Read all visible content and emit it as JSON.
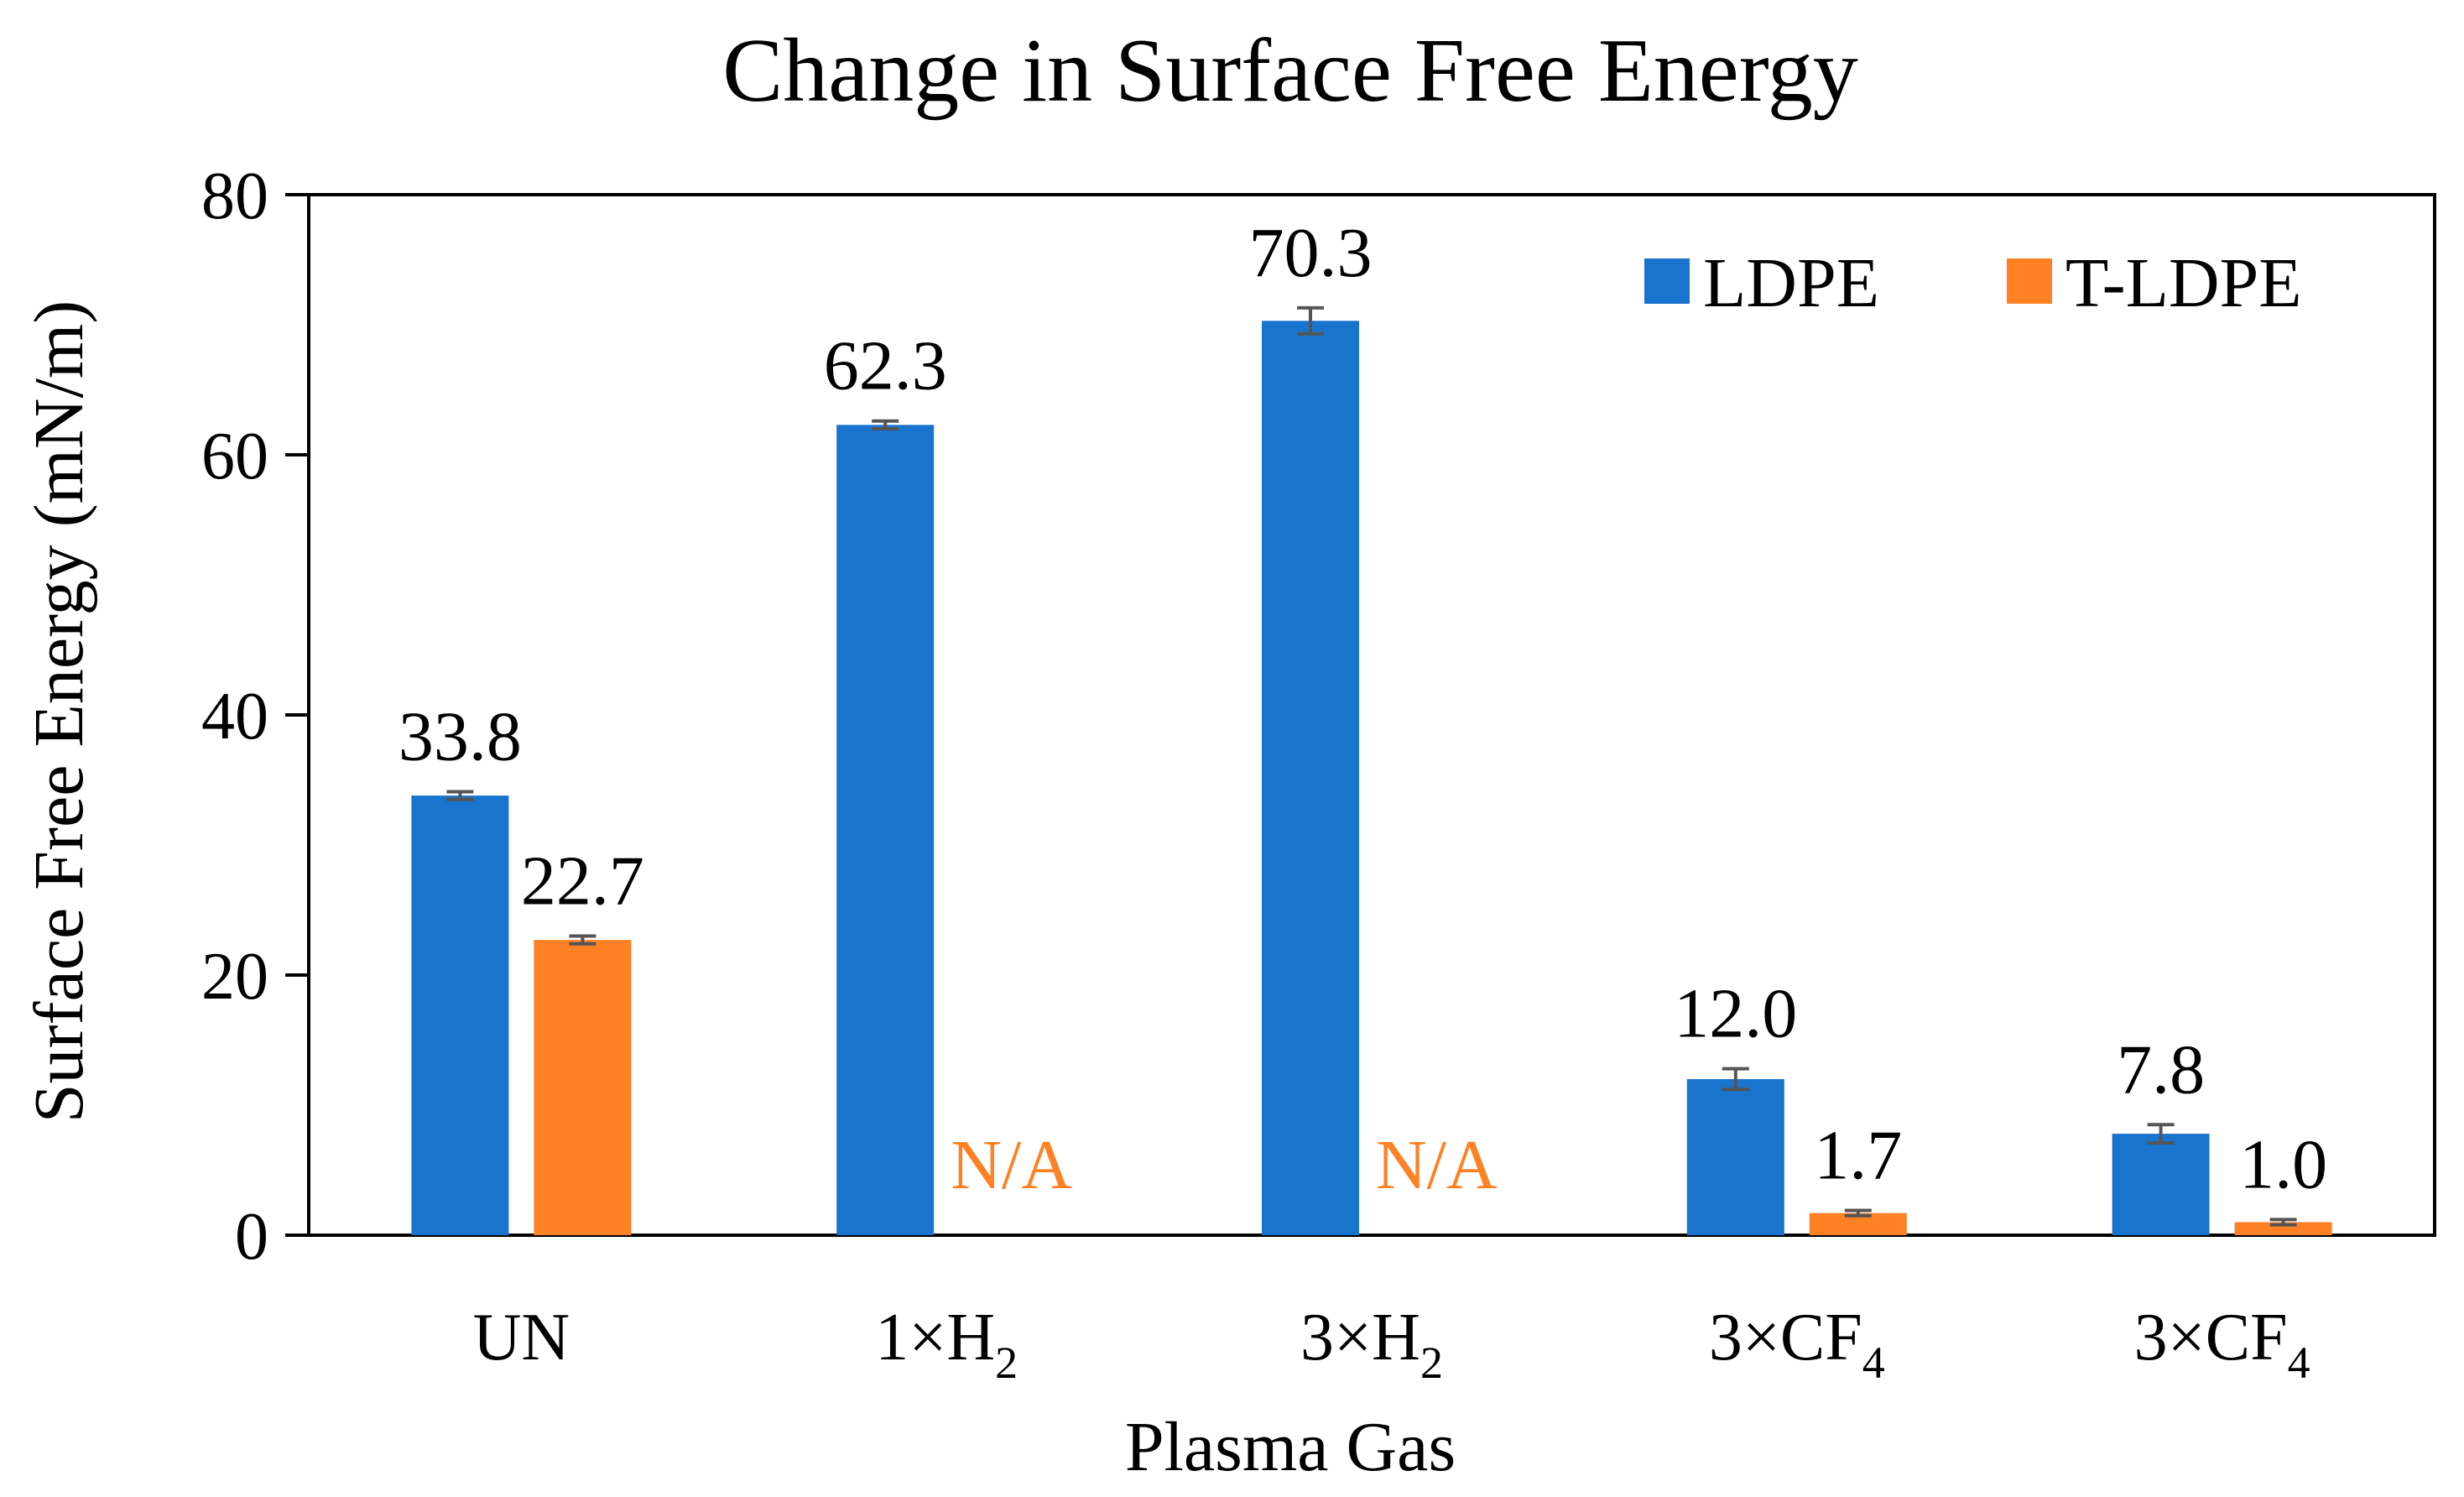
{
  "chart_data": {
    "type": "bar",
    "title": "Change in Surface Free Energy",
    "xlabel": "Plasma Gas",
    "ylabel": "Surface Free Energy (mN/m)",
    "ylim": [
      0,
      80
    ],
    "yticks": [
      0,
      20,
      40,
      60,
      80
    ],
    "ytick_labels": [
      "0",
      "20",
      "40",
      "60",
      "80"
    ],
    "grid": false,
    "legend_position": "top-right",
    "categories": [
      {
        "base": "UN",
        "sub": ""
      },
      {
        "base": "1×H",
        "sub": "2"
      },
      {
        "base": "3×H",
        "sub": "2"
      },
      {
        "base": "3×CF",
        "sub": "4"
      },
      {
        "base": "3×CF",
        "sub": "4"
      }
    ],
    "na_label": "N/A",
    "series": [
      {
        "name": "LDPE",
        "color": "#1874CD",
        "values": [
          33.8,
          62.3,
          70.3,
          12.0,
          7.8
        ],
        "labels": [
          "33.8",
          "62.3",
          "70.3",
          "12.0",
          "7.8"
        ],
        "errors": [
          0.3,
          0.3,
          1.0,
          0.8,
          0.7
        ]
      },
      {
        "name": "T-LDPE",
        "color": "#FF8124",
        "values": [
          22.7,
          null,
          null,
          1.7,
          1.0
        ],
        "labels": [
          "22.7",
          "N/A",
          "N/A",
          "1.7",
          "1.0"
        ],
        "errors": [
          0.3,
          null,
          null,
          0.2,
          0.2
        ]
      }
    ]
  }
}
